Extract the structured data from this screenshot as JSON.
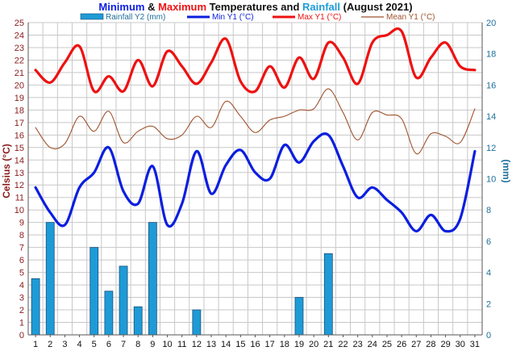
{
  "title": {
    "part1": "Minimum",
    "part2": " & ",
    "part3": "Maximum",
    "part4": " Temperatures and ",
    "part5": "Rainfall",
    "part6": " (August 2021)"
  },
  "colors": {
    "min": "#0b1ee0",
    "max": "#ee1111",
    "mean": "#a0522d",
    "rain": "#1e9bd7",
    "rain_edge": "#1a4f7a",
    "left_axis": "#8b1a1a",
    "right_axis": "#1e6f9b",
    "grid": "#c8c8c8"
  },
  "chart_data": {
    "type": "line",
    "xlabel": "",
    "ylabel": "Celsius (°C)",
    "y2label": "(mm)",
    "ylim": [
      0,
      25
    ],
    "y2lim": [
      0,
      20
    ],
    "grid": true,
    "legend_placement": "top",
    "x": [
      1,
      2,
      3,
      4,
      5,
      6,
      7,
      8,
      9,
      10,
      11,
      12,
      13,
      14,
      15,
      16,
      17,
      18,
      19,
      20,
      21,
      22,
      23,
      24,
      25,
      26,
      27,
      28,
      29,
      30,
      31
    ],
    "series": [
      {
        "name": "Rainfall Y2 (mm)",
        "axis": "y2",
        "kind": "bar",
        "values": [
          3.6,
          7.2,
          0,
          0,
          5.6,
          2.8,
          4.4,
          1.8,
          7.2,
          0,
          0,
          1.6,
          0,
          0,
          0,
          0,
          0,
          0,
          2.4,
          0,
          5.2,
          0,
          0,
          0,
          0,
          0,
          0,
          0,
          0,
          0,
          0
        ]
      },
      {
        "name": "Min Y1 (°C)",
        "axis": "y1",
        "kind": "line",
        "values": [
          11.8,
          9.8,
          8.8,
          11.8,
          13.0,
          15.0,
          11.5,
          10.5,
          13.5,
          8.8,
          10.5,
          14.7,
          11.3,
          13.6,
          14.8,
          13.0,
          12.5,
          15.2,
          13.8,
          15.5,
          16.0,
          13.5,
          11.0,
          11.8,
          10.8,
          9.8,
          8.3,
          9.6,
          8.3,
          9.3,
          14.7
        ]
      },
      {
        "name": "Max Y1 (°C)",
        "axis": "y1",
        "kind": "line",
        "values": [
          21.2,
          20.2,
          21.8,
          23.1,
          19.5,
          20.7,
          19.5,
          22.0,
          19.9,
          22.7,
          21.5,
          20.1,
          21.8,
          23.7,
          20.3,
          19.5,
          21.5,
          19.8,
          22.2,
          20.5,
          23.4,
          22.2,
          20.1,
          23.4,
          24.0,
          24.3,
          20.6,
          22.2,
          23.4,
          21.5,
          21.2
        ]
      },
      {
        "name": "Mean Y1 (°C)",
        "axis": "y1",
        "kind": "line",
        "values": [
          16.6,
          15.0,
          15.3,
          17.5,
          16.3,
          17.9,
          15.4,
          16.3,
          16.7,
          15.7,
          16.0,
          17.5,
          16.6,
          18.7,
          17.5,
          16.2,
          17.2,
          17.5,
          18.0,
          18.1,
          19.7,
          17.8,
          15.6,
          17.8,
          17.6,
          17.3,
          14.5,
          16.1,
          15.9,
          15.4,
          18.1
        ]
      }
    ],
    "y_ticks": [
      "0",
      "1",
      "2",
      "3",
      "4",
      "5",
      "6",
      "7",
      "8",
      "9",
      "10",
      "11",
      "12",
      "13",
      "14",
      "15",
      "16",
      "17",
      "18",
      "19",
      "20",
      "21",
      "22",
      "23",
      "24",
      "25"
    ],
    "y2_ticks": [
      "0",
      "2",
      "4",
      "6",
      "8",
      "10",
      "12",
      "14",
      "16",
      "18",
      "20"
    ],
    "x_ticks": [
      "1",
      "2",
      "3",
      "4",
      "5",
      "6",
      "7",
      "8",
      "9",
      "10",
      "11",
      "12",
      "13",
      "14",
      "15",
      "16",
      "17",
      "18",
      "19",
      "20",
      "21",
      "22",
      "23",
      "24",
      "25",
      "26",
      "27",
      "28",
      "29",
      "30",
      "31"
    ]
  }
}
